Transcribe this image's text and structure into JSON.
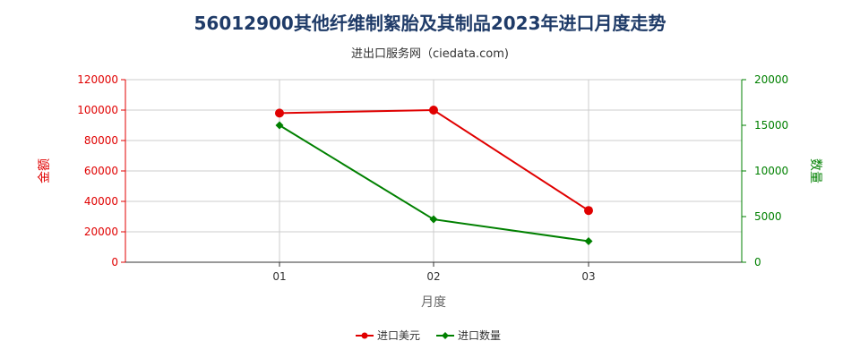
{
  "title": "56012900其他纤维制絮胎及其制品2023年进口月度走势",
  "subtitle": "进出口服务网（ciedata.com)",
  "colors": {
    "left_axis": "#e00000",
    "right_axis": "#008000",
    "grid": "#cccccc",
    "title": "#1f3b68"
  },
  "chart_data": {
    "type": "line",
    "categories": [
      "01",
      "02",
      "03"
    ],
    "xlabel": "月度",
    "y_left": {
      "label": "金额",
      "ticks": [
        "0",
        "20000",
        "40000",
        "60000",
        "80000",
        "100000",
        "120000"
      ],
      "lim": [
        0,
        120000
      ]
    },
    "y_right": {
      "label": "数量",
      "ticks": [
        "0",
        "5000",
        "10000",
        "15000",
        "20000"
      ],
      "lim": [
        0,
        20000
      ]
    },
    "series": [
      {
        "name": "进口美元",
        "axis": "left",
        "color": "#e00000",
        "marker": "circle",
        "values": [
          98000,
          100000,
          34000
        ]
      },
      {
        "name": "进口数量",
        "axis": "right",
        "color": "#008000",
        "marker": "diamond",
        "values": [
          15000,
          4700,
          2300
        ]
      }
    ],
    "grid": true,
    "legend_position": "bottom-center"
  }
}
